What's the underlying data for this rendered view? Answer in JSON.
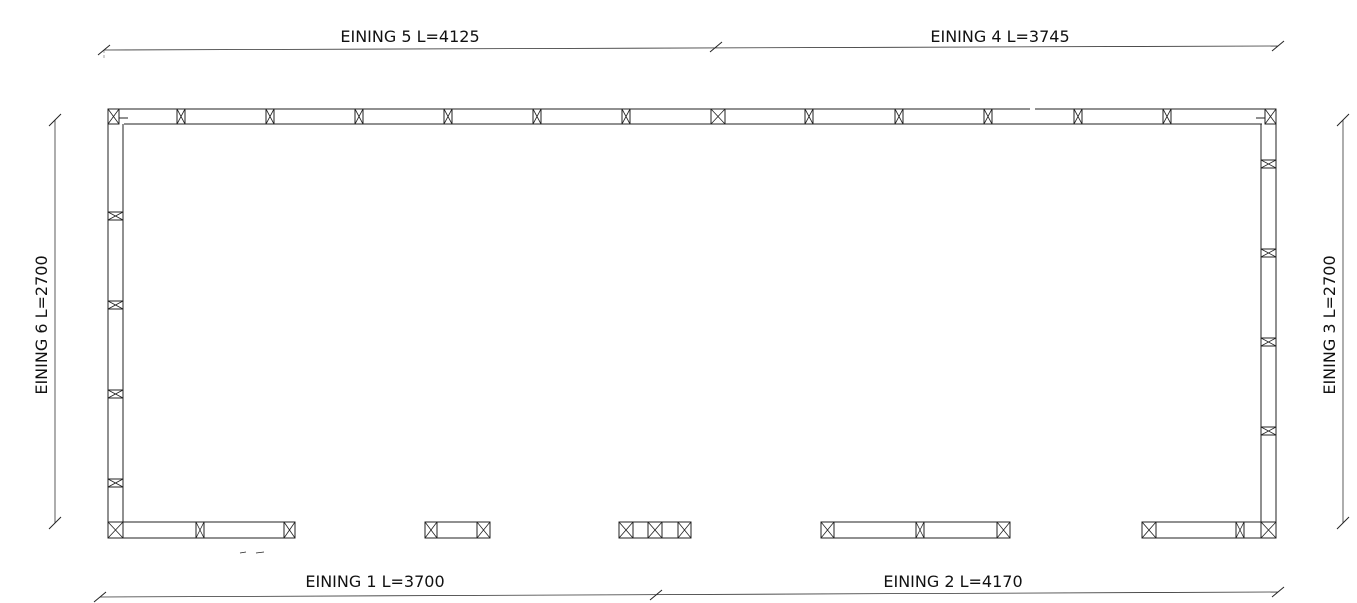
{
  "dimensions": {
    "top_left": "EINING 5 L=4125",
    "top_right": "EINING 4 L=3745",
    "bottom_left": "EINING 1 L=3700",
    "bottom_right": "EINING 2 L=4170",
    "left": "EINING 6 L=2700",
    "right": "EINING 3 L=2700"
  }
}
